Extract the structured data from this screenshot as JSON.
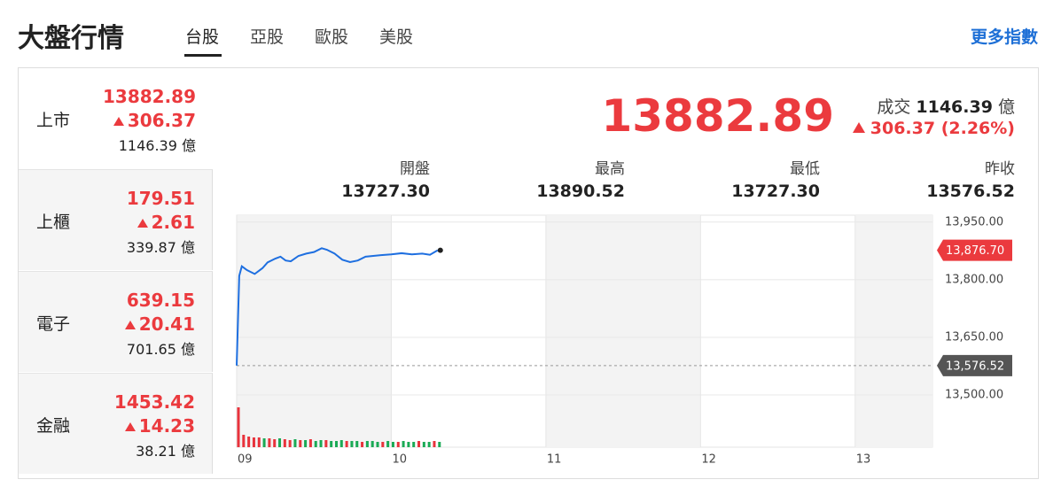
{
  "header": {
    "title": "大盤行情",
    "tabs": [
      "台股",
      "亞股",
      "歐股",
      "美股"
    ],
    "more_link": "更多指數"
  },
  "markets": [
    {
      "name": "上市",
      "price": "13882.89",
      "change": "306.37",
      "volume": "1146.39 億"
    },
    {
      "name": "上櫃",
      "price": "179.51",
      "change": "2.61",
      "volume": "339.87 億"
    },
    {
      "name": "電子",
      "price": "639.15",
      "change": "20.41",
      "volume": "701.65 億"
    },
    {
      "name": "金融",
      "price": "1453.42",
      "change": "14.23",
      "volume": "38.21 億"
    }
  ],
  "summary": {
    "price": "13882.89",
    "volume_label": "成交",
    "volume": "1146.39",
    "volume_unit": "億",
    "change": "306.37",
    "change_pct": "(2.26%)"
  },
  "stats": [
    {
      "label": "開盤",
      "value": "13727.30"
    },
    {
      "label": "最高",
      "value": "13890.52"
    },
    {
      "label": "最低",
      "value": "13727.30"
    },
    {
      "label": "昨收",
      "value": "13576.52"
    }
  ],
  "chart_data": {
    "type": "line",
    "xlim": [
      0,
      270
    ],
    "xticks": [
      {
        "value": 0,
        "label": "09"
      },
      {
        "value": 60,
        "label": "10"
      },
      {
        "value": 120,
        "label": "11"
      },
      {
        "value": 180,
        "label": "12"
      },
      {
        "value": 240,
        "label": "13"
      }
    ],
    "ylim": [
      13364,
      13968
    ],
    "yticks": [
      {
        "value": 13950,
        "label": "13,950.00"
      },
      {
        "value": 13800,
        "label": "13,800.00"
      },
      {
        "value": 13650,
        "label": "13,650.00"
      },
      {
        "value": 13500,
        "label": "13,500.00"
      }
    ],
    "grid": true,
    "series": [
      {
        "color": "#1e6fe0",
        "x": [
          0,
          1,
          2,
          4,
          7,
          10,
          12,
          15,
          17,
          19,
          21,
          24,
          27,
          30,
          33,
          35,
          38,
          41,
          44,
          47,
          50,
          53,
          56,
          60,
          64,
          68,
          72,
          75,
          78
        ],
        "values": [
          13576.52,
          13810,
          13835,
          13825,
          13815,
          13830,
          13845,
          13855,
          13860,
          13850,
          13848,
          13862,
          13868,
          13872,
          13882,
          13878,
          13868,
          13852,
          13846,
          13850,
          13860,
          13862,
          13864,
          13866,
          13869,
          13866,
          13868,
          13865,
          13876.7
        ]
      }
    ],
    "last": {
      "value": 13876.7,
      "label": "13,876.70"
    },
    "reference": {
      "value": 13576.52,
      "label": "13,576.52"
    },
    "volume": {
      "vlim": [
        0,
        60
      ],
      "x": [
        0,
        2,
        4,
        6,
        8,
        10,
        12,
        14,
        16,
        18,
        20,
        22,
        24,
        26,
        28,
        30,
        32,
        34,
        36,
        38,
        40,
        42,
        44,
        46,
        48,
        50,
        52,
        54,
        56,
        58,
        60,
        62,
        64,
        66,
        68,
        70,
        72,
        74,
        76,
        78
      ],
      "values": [
        45,
        14,
        12,
        11,
        11,
        10,
        10,
        9,
        10,
        9,
        8,
        9,
        8,
        8,
        9,
        7,
        8,
        8,
        7,
        7,
        8,
        7,
        7,
        7,
        6,
        7,
        7,
        6,
        6,
        7,
        6,
        6,
        7,
        6,
        6,
        7,
        6,
        6,
        7,
        6
      ],
      "colors": [
        "#e8333c",
        "#e8333c",
        "#e8333c",
        "#e8333c",
        "#e8333c",
        "#1aaa55",
        "#e8333c",
        "#e8333c",
        "#1aaa55",
        "#e8333c",
        "#e8333c",
        "#1aaa55",
        "#e8333c",
        "#1aaa55",
        "#e8333c",
        "#1aaa55",
        "#1aaa55",
        "#e8333c",
        "#1aaa55",
        "#1aaa55",
        "#1aaa55",
        "#e8333c",
        "#1aaa55",
        "#1aaa55",
        "#e8333c",
        "#1aaa55",
        "#1aaa55",
        "#1aaa55",
        "#e8333c",
        "#1aaa55",
        "#1aaa55",
        "#e8333c",
        "#1aaa55",
        "#1aaa55",
        "#1aaa55",
        "#e8333c",
        "#1aaa55",
        "#1aaa55",
        "#e8333c",
        "#1aaa55"
      ]
    }
  }
}
